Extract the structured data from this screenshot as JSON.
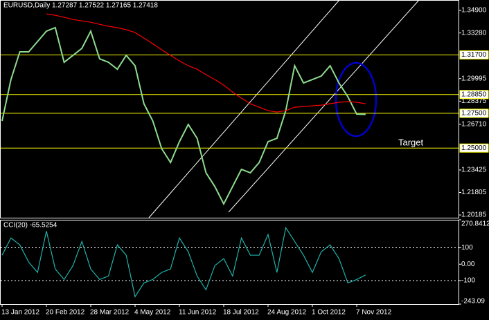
{
  "chart_data": [
    {
      "type": "line",
      "title": "EURUSD,Daily",
      "subtitle": "1.27287 1.27522 1.27165 1.27418",
      "categories": [
        "13 Jan 2012",
        null,
        null,
        null,
        null,
        "20 Feb 2012",
        null,
        null,
        null,
        null,
        "28 Mar 2012",
        null,
        null,
        null,
        null,
        "4 May 2012",
        null,
        null,
        null,
        null,
        "11 Jun 2012",
        null,
        null,
        null,
        null,
        "18 Jul 2012",
        null,
        null,
        null,
        null,
        "24 Aug 2012",
        null,
        null,
        null,
        null,
        "1 Oct 2012",
        null,
        null,
        null,
        null,
        "7 Nov 2012",
        null
      ],
      "series": [
        {
          "color": "#8fdc8f",
          "values": [
            1.2695,
            1.2993,
            1.3192,
            1.3192,
            1.3266,
            1.3341,
            1.3366,
            1.3117,
            1.3167,
            1.3217,
            1.3341,
            1.3142,
            1.3117,
            1.3067,
            1.3167,
            1.3092,
            1.2819,
            1.2695,
            1.2496,
            1.2396,
            1.2546,
            1.267,
            1.257,
            1.2322,
            1.2223,
            1.2098,
            1.2223,
            1.2347,
            1.2322,
            1.2396,
            1.2546,
            1.257,
            1.2769,
            1.3092,
            1.2968,
            1.2993,
            1.3018,
            1.3092,
            1.2968,
            1.2869,
            1.2744,
            1.2742
          ]
        },
        {
          "color": "#ff0000",
          "values": [
            null,
            null,
            null,
            null,
            null,
            1.3465,
            1.3455,
            1.344,
            1.3425,
            1.3415,
            1.3405,
            1.339,
            1.3376,
            1.3366,
            1.3351,
            1.3331,
            1.3291,
            1.3251,
            1.3207,
            1.3167,
            1.3127,
            1.3092,
            1.3067,
            1.3028,
            1.2993,
            1.2953,
            1.2903,
            1.2859,
            1.2819,
            1.2794,
            1.2769,
            1.2759,
            1.2769,
            1.2794,
            1.2799,
            1.2804,
            1.2809,
            1.2819,
            1.2829,
            1.2834,
            1.2829,
            1.2819
          ]
        }
      ],
      "ylim": [
        1.1999,
        1.3565
      ],
      "yticks": [
        {
          "value": 1.349,
          "label": "1.34900"
        },
        {
          "value": 1.3328,
          "label": "1.33280"
        },
        {
          "value": 1.29995,
          "label": "1.29995"
        },
        {
          "value": 1.28375,
          "label": "1.28375"
        },
        {
          "value": 1.2671,
          "label": "1.26710"
        },
        {
          "value": 1.23425,
          "label": "1.23425"
        },
        {
          "value": 1.21805,
          "label": "1.21805"
        },
        {
          "value": 1.20185,
          "label": "1.20185"
        }
      ],
      "hlines": [
        {
          "value": 1.317,
          "label": "1.31700"
        },
        {
          "value": 1.2885,
          "label": "1.28850"
        },
        {
          "value": 1.275,
          "label": "1.27500"
        },
        {
          "value": 1.25,
          "label": "1.25000"
        }
      ],
      "hline_color": "#ffff00",
      "annotation": "Target"
    },
    {
      "type": "line",
      "title": "CCI(20) -65.5254",
      "series": [
        {
          "color": "#20b2aa",
          "values": [
            55,
            160,
            118,
            13,
            -50,
            202,
            -29,
            -93,
            -8,
            139,
            -29,
            -93,
            -72,
            118,
            55,
            -198,
            -114,
            -93,
            -50,
            -29,
            160,
            76,
            -72,
            -156,
            -8,
            34,
            -72,
            160,
            55,
            55,
            181,
            -50,
            223,
            139,
            55,
            -50,
            76,
            118,
            34,
            -114,
            -93,
            -65.5254
          ]
        }
      ],
      "ylim": [
        -243.09,
        270.8412
      ],
      "yticks": [
        270.8412,
        100,
        {
          "value": 0,
          "label": "0.00"
        },
        -100,
        -243.09
      ],
      "levels": [
        100,
        -100
      ]
    }
  ]
}
